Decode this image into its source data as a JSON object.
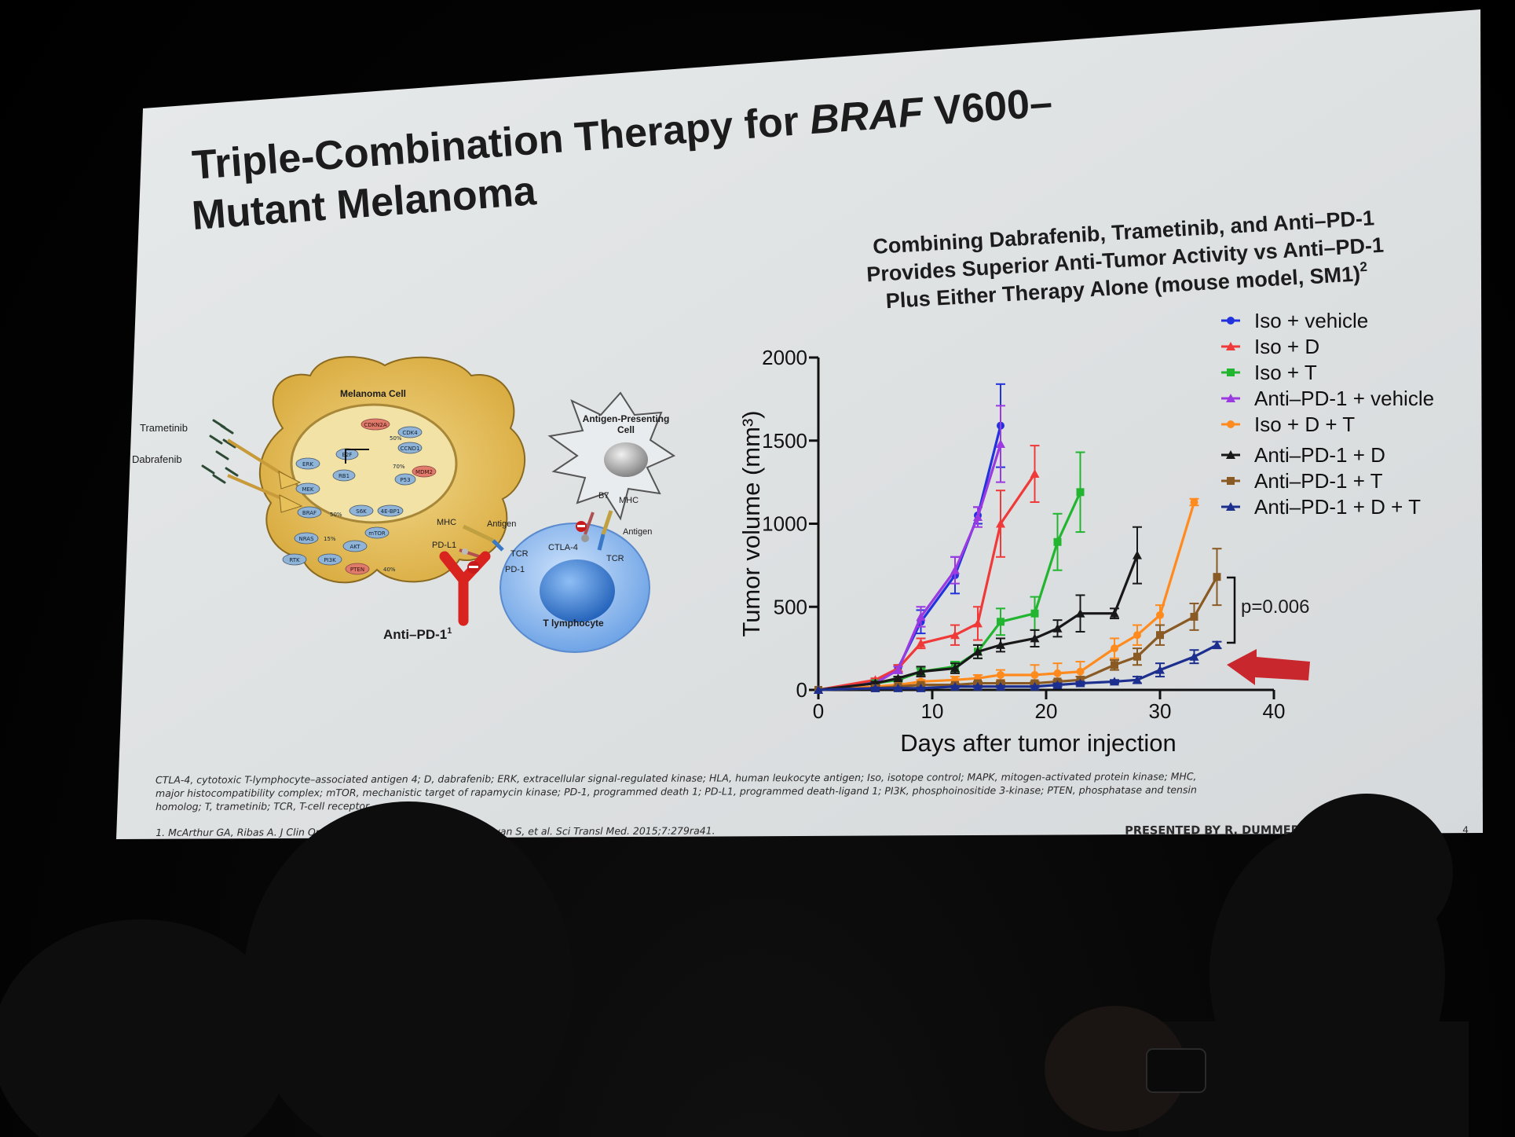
{
  "slide": {
    "title_line1": "Triple-Combination Therapy for ",
    "title_italic": "BRAF",
    "title_line1_end": " V600–",
    "title_line2": "Mutant Melanoma",
    "subtitle_line1": "Combining Dabrafenib, Trametinib, and Anti–PD-1",
    "subtitle_line2": "Provides Superior Anti-Tumor Activity vs Anti–PD-1",
    "subtitle_line3": "Plus Either Therapy Alone (mouse model, SM1)",
    "subtitle_sup": "2",
    "background_color": "#e3e6e7"
  },
  "diagram": {
    "melanoma_cell": "Melanoma Cell",
    "trametinib": "Trametinib",
    "dabrafenib": "Dabrafenib",
    "apc_line1": "Antigen-Presenting",
    "apc_line2": "Cell",
    "mhc_left": "MHC",
    "antigen_left": "Antigen",
    "pdl1": "PD-L1",
    "tcr_left": "TCR",
    "pd1": "PD-1",
    "b7": "B7",
    "mhc_right": "MHC",
    "antigen_right": "Antigen",
    "ctla4": "CTLA-4",
    "tcr_right": "TCR",
    "t_lymphocyte": "T lymphocyte",
    "anti_pd1": "Anti–PD-1",
    "anti_pd1_sup": "1",
    "pathway_labels": [
      "ERK",
      "MEK",
      "BRAF",
      "NRAS",
      "RTK",
      "PI3K",
      "AKT",
      "mTOR",
      "PTEN",
      "S6K",
      "4E-BP1",
      "CDKN2A",
      "CDK4",
      "CCND1",
      "E2F",
      "RB1",
      "MDM2",
      "P53"
    ],
    "pct_labels": [
      "50%",
      "50%",
      "15%",
      "40%",
      "70%"
    ]
  },
  "footnote": {
    "line1": "CTLA-4, cytotoxic T-lymphocyte–associated antigen 4; D, dabrafenib; ERK, extracellular signal-regulated kinase; HLA, human leukocyte antigen; Iso, isotope control; MAPK, mitogen-activated protein kinase; MHC,",
    "line2": "major histocompatibility complex; mTOR, mechanistic target of rapamycin kinase; PD-1, programmed death 1; PD-L1, programmed death-ligand 1; PI3K, phosphoinositide 3-kinase; PTEN, phosphatase and tensin",
    "line3": "homolog; T, trametinib; TCR, T-cell receptor.",
    "line4": "1. McArthur GA, Ribas A. J Clin Oncol. 2013;31:499-506; 2. Hu-Lieskovan S, et al. Sci Transl Med. 2015;7:279ra41.",
    "presented": "PRESENTED BY R. DUMMER AT AACR 2018",
    "page": "4"
  },
  "chart_data": {
    "type": "line",
    "xlabel": "Days after tumor injection",
    "ylabel": "Tumor volume (mm³)",
    "xlim": [
      0,
      40
    ],
    "ylim": [
      0,
      2000
    ],
    "xticks": [
      0,
      10,
      20,
      30,
      40
    ],
    "yticks": [
      0,
      500,
      1000,
      1500,
      2000
    ],
    "legend_position": "top-right",
    "annotation": "p=0.006",
    "series": [
      {
        "name": "Iso + vehicle",
        "color": "#2233dd",
        "marker": "circle",
        "points": [
          [
            0,
            0
          ],
          [
            5,
            50
          ],
          [
            7,
            130
          ],
          [
            9,
            410
          ],
          [
            12,
            690
          ],
          [
            14,
            1050
          ],
          [
            16,
            1590
          ]
        ],
        "err": [
          0,
          10,
          20,
          70,
          110,
          50,
          250
        ]
      },
      {
        "name": "Iso + D",
        "color": "#f03a3a",
        "marker": "triangle",
        "points": [
          [
            0,
            0
          ],
          [
            5,
            60
          ],
          [
            7,
            130
          ],
          [
            9,
            280
          ],
          [
            12,
            330
          ],
          [
            14,
            400
          ],
          [
            16,
            1000
          ],
          [
            19,
            1300
          ]
        ],
        "err": [
          0,
          10,
          20,
          30,
          60,
          100,
          200,
          170
        ]
      },
      {
        "name": "Iso + T",
        "color": "#22b530",
        "marker": "square",
        "points": [
          [
            0,
            0
          ],
          [
            5,
            40
          ],
          [
            7,
            60
          ],
          [
            9,
            110
          ],
          [
            12,
            140
          ],
          [
            14,
            230
          ],
          [
            16,
            410
          ],
          [
            19,
            460
          ],
          [
            21,
            890
          ],
          [
            23,
            1190
          ]
        ],
        "err": [
          0,
          10,
          10,
          20,
          30,
          40,
          80,
          100,
          170,
          240
        ]
      },
      {
        "name": "Anti–PD-1 + vehicle",
        "color": "#9a3ae0",
        "marker": "triangle",
        "points": [
          [
            0,
            0
          ],
          [
            5,
            40
          ],
          [
            7,
            120
          ],
          [
            9,
            440
          ],
          [
            12,
            720
          ],
          [
            14,
            1040
          ],
          [
            16,
            1480
          ]
        ],
        "err": [
          0,
          10,
          20,
          60,
          80,
          60,
          230
        ]
      },
      {
        "name": "Iso + D + T",
        "color": "#ff8a1e",
        "marker": "circle",
        "points": [
          [
            0,
            0
          ],
          [
            5,
            20
          ],
          [
            7,
            30
          ],
          [
            9,
            50
          ],
          [
            12,
            60
          ],
          [
            14,
            70
          ],
          [
            16,
            90
          ],
          [
            19,
            90
          ],
          [
            21,
            100
          ],
          [
            23,
            110
          ],
          [
            26,
            250
          ],
          [
            28,
            330
          ],
          [
            30,
            450
          ],
          [
            33,
            1130
          ]
        ],
        "err": [
          0,
          5,
          5,
          10,
          20,
          20,
          30,
          60,
          60,
          60,
          60,
          60,
          60,
          20
        ]
      },
      {
        "name": "Anti–PD-1 + D",
        "color": "#181818",
        "marker": "triangle",
        "points": [
          [
            0,
            0
          ],
          [
            5,
            40
          ],
          [
            7,
            70
          ],
          [
            9,
            110
          ],
          [
            12,
            130
          ],
          [
            14,
            230
          ],
          [
            16,
            270
          ],
          [
            19,
            310
          ],
          [
            21,
            370
          ],
          [
            23,
            460
          ],
          [
            26,
            460
          ],
          [
            28,
            810
          ]
        ],
        "err": [
          0,
          10,
          10,
          30,
          30,
          40,
          40,
          50,
          50,
          110,
          30,
          170
        ]
      },
      {
        "name": "Anti–PD-1 + T",
        "color": "#8a5a24",
        "marker": "square",
        "points": [
          [
            0,
            0
          ],
          [
            5,
            10
          ],
          [
            7,
            20
          ],
          [
            9,
            30
          ],
          [
            12,
            30
          ],
          [
            14,
            40
          ],
          [
            16,
            40
          ],
          [
            19,
            40
          ],
          [
            21,
            50
          ],
          [
            23,
            60
          ],
          [
            26,
            150
          ],
          [
            28,
            200
          ],
          [
            30,
            330
          ],
          [
            33,
            440
          ],
          [
            35,
            680
          ]
        ],
        "err": [
          0,
          5,
          5,
          5,
          5,
          10,
          10,
          10,
          10,
          20,
          30,
          50,
          60,
          80,
          170
        ]
      },
      {
        "name": "Anti–PD-1 + D + T",
        "color": "#1c2f8e",
        "marker": "triangle",
        "points": [
          [
            0,
            0
          ],
          [
            5,
            10
          ],
          [
            7,
            10
          ],
          [
            9,
            10
          ],
          [
            12,
            20
          ],
          [
            14,
            20
          ],
          [
            16,
            20
          ],
          [
            19,
            20
          ],
          [
            21,
            30
          ],
          [
            23,
            40
          ],
          [
            26,
            50
          ],
          [
            28,
            60
          ],
          [
            30,
            120
          ],
          [
            33,
            200
          ],
          [
            35,
            270
          ]
        ],
        "err": [
          0,
          5,
          5,
          5,
          5,
          5,
          5,
          5,
          10,
          10,
          10,
          20,
          40,
          40,
          20
        ]
      }
    ]
  }
}
